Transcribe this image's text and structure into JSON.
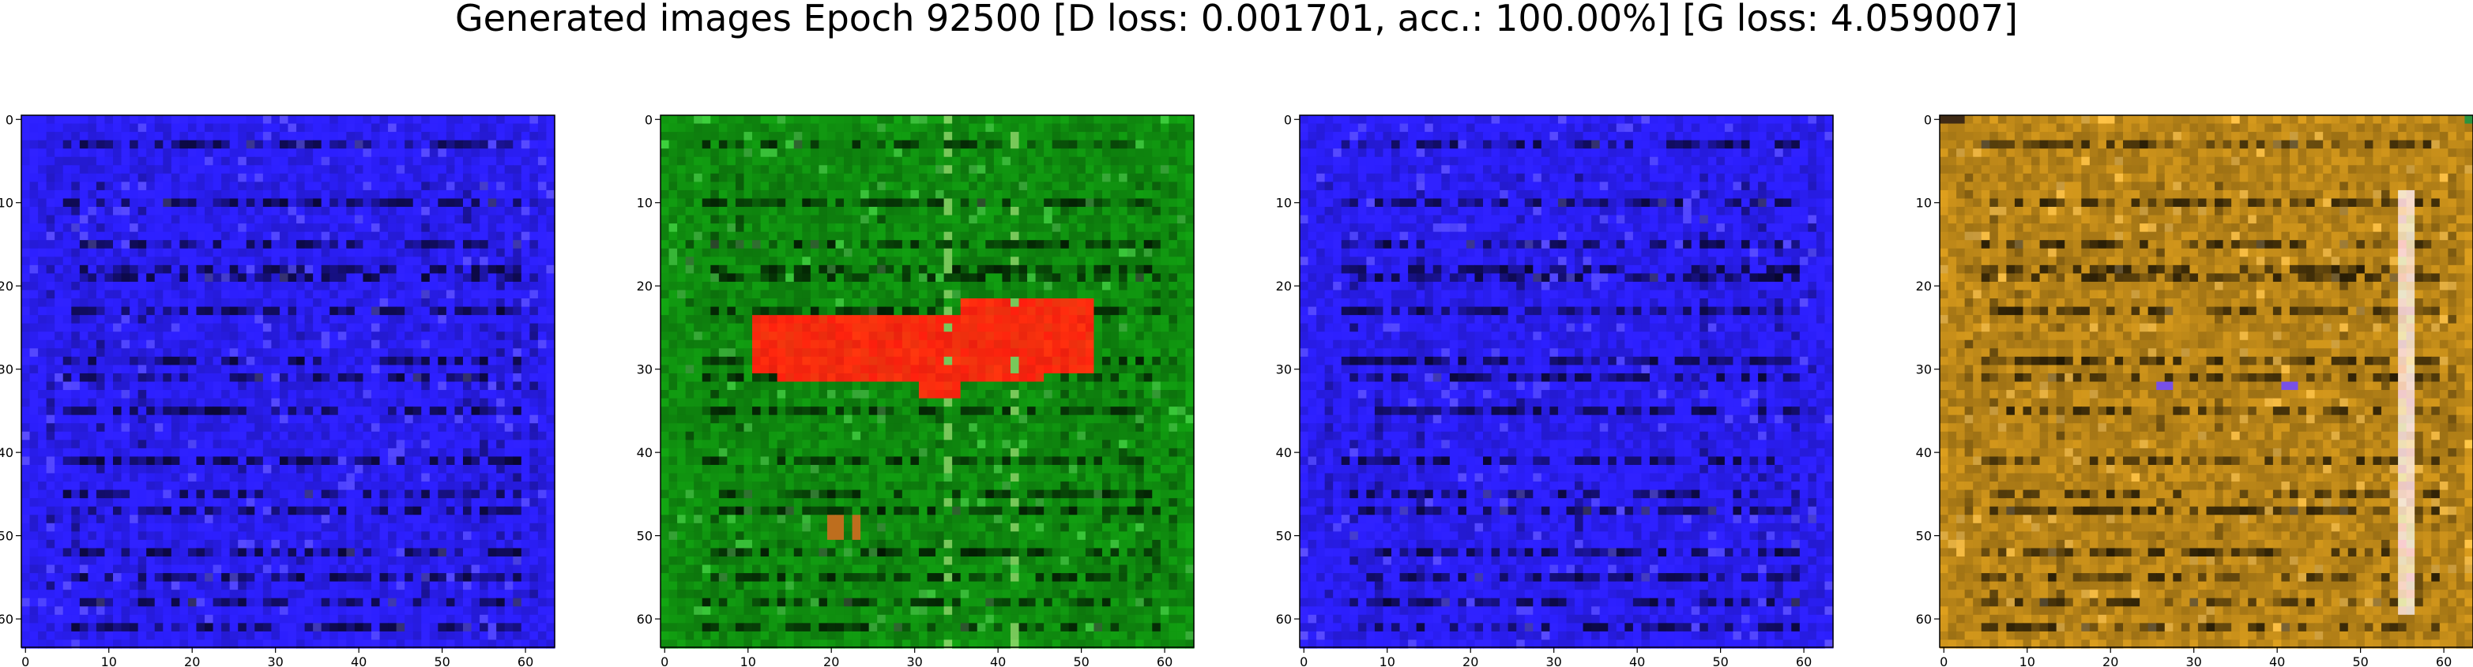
{
  "figure": {
    "suptitle": "Generated images Epoch 92500 [D loss: 0.001701, acc.: 100.00%] [G loss: 4.059007]"
  },
  "chart_data": [
    {
      "type": "heatmap",
      "panel": 1,
      "xlim": [
        0,
        63
      ],
      "ylim": [
        63,
        0
      ],
      "xticks": [
        0,
        10,
        20,
        30,
        40,
        50,
        60
      ],
      "yticks": [
        0,
        10,
        20,
        30,
        40,
        50,
        60
      ],
      "dominant_color": "#2a1ef2",
      "content": "blue noise texture with dark horizontal streak pattern"
    },
    {
      "type": "heatmap",
      "panel": 2,
      "xlim": [
        0,
        63
      ],
      "ylim": [
        63,
        0
      ],
      "xticks": [
        0,
        10,
        20,
        30,
        40,
        50,
        60
      ],
      "yticks": [
        0,
        10,
        20,
        30,
        40,
        50,
        60
      ],
      "dominant_color": "#0f8a0f",
      "blob_color": "#ff2a10",
      "content": "green texture with red horizontal blob near rows 22-34"
    },
    {
      "type": "heatmap",
      "panel": 3,
      "xlim": [
        0,
        63
      ],
      "ylim": [
        63,
        0
      ],
      "xticks": [
        0,
        10,
        20,
        30,
        40,
        50,
        60
      ],
      "yticks": [
        0,
        10,
        20,
        30,
        40,
        50,
        60
      ],
      "dominant_color": "#2a1ef2",
      "content": "blue noise texture with dark horizontal streak pattern"
    },
    {
      "type": "heatmap",
      "panel": 4,
      "xlim": [
        0,
        63
      ],
      "ylim": [
        63,
        0
      ],
      "xticks": [
        0,
        10,
        20,
        30,
        40,
        50,
        60
      ],
      "yticks": [
        0,
        10,
        20,
        30,
        40,
        50,
        60
      ],
      "dominant_color": "#b88418",
      "content": "ochre texture with dark streaks and purple spots"
    }
  ]
}
